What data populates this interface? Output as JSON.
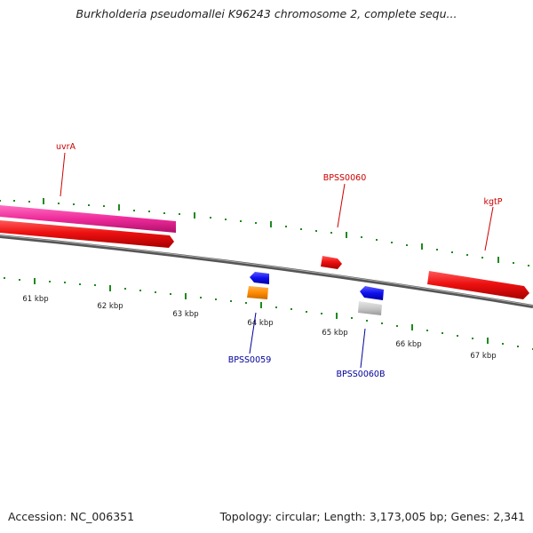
{
  "title": "Burkholderia pseudomallei K96243 chromosome 2, complete sequ...",
  "footer": {
    "accession": "Accession: NC_006351",
    "summary": "Topology: circular; Length: 3,173,005 bp; Genes: 2,341"
  },
  "scale_labels": [
    "61 kbp",
    "62 kbp",
    "63 kbp",
    "64 kbp",
    "65 kbp",
    "66 kbp",
    "67 kbp"
  ],
  "genes_top": [
    "uvrA",
    "BPSS0060",
    "kgtP"
  ],
  "genes_bottom": [
    "BPSS0059",
    "BPSS0060B"
  ],
  "colors": {
    "forward_gene": "#ee1111",
    "reverse_blue": "#1010ee",
    "orange": "#ff8c00",
    "grey": "#c8c8c8",
    "pink": "#ee2a9a",
    "tick": "#1e8a1e",
    "top_label": "#cc0000",
    "bottom_label": "#000099"
  }
}
